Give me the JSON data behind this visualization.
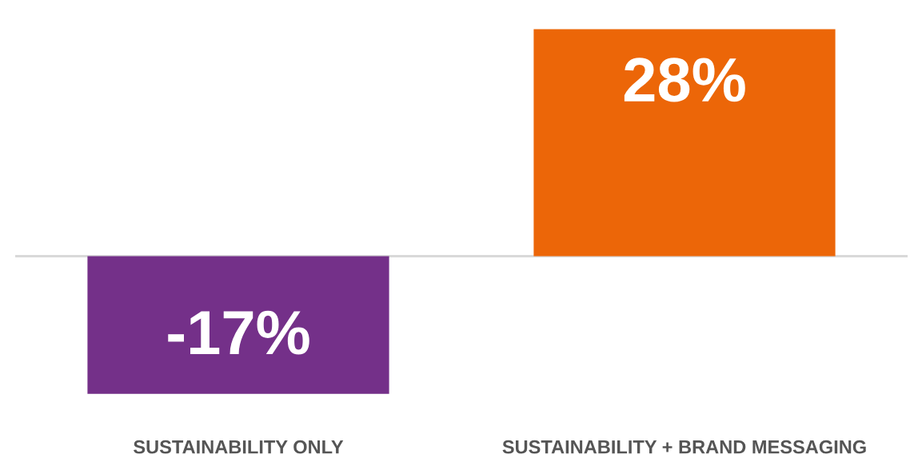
{
  "chart_data": {
    "type": "bar",
    "categories": [
      "SUSTAINABILITY ONLY",
      "SUSTAINABILITY + BRAND MESSAGING"
    ],
    "values": [
      -17,
      28
    ],
    "colors": [
      "#743089",
      "#ec6608"
    ],
    "value_labels": [
      "-17%",
      "28%"
    ],
    "tick_labels": "x",
    "grid": false,
    "legend": false
  }
}
